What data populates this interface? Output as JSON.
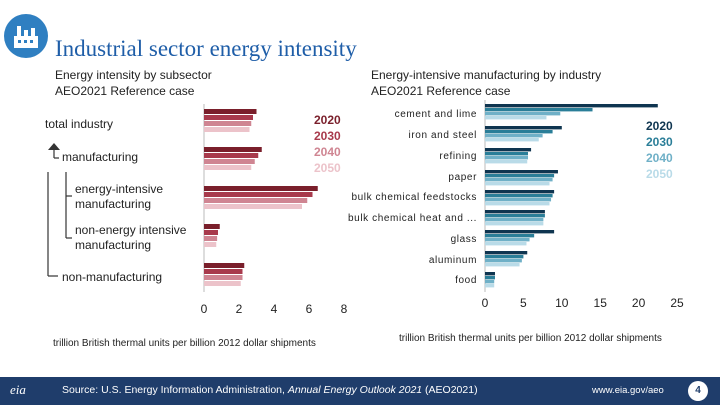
{
  "slide_title": "Industrial sector energy intensity",
  "left_subtitle": [
    "Energy intensity by subsector",
    "AEO2021 Reference case"
  ],
  "right_subtitle": [
    "Energy-intensive manufacturing by industry",
    "AEO2021 Reference case"
  ],
  "footer": {
    "source_prefix": "Source: U.S. Energy Information Administration, ",
    "source_title": "Annual Energy Outlook 2021",
    "source_suffix": " (AEO2021)",
    "url": "www.eia.gov/aeo",
    "page": "4",
    "logo_text": "eia"
  },
  "colors": {
    "title": "#1f5ea8",
    "left_series": [
      "#7a1f2b",
      "#a83a4c",
      "#cf8592",
      "#ecc3ca"
    ],
    "right_series": [
      "#0f3550",
      "#2a7e98",
      "#6fb0c7",
      "#b9dbe8"
    ],
    "footer": "#1f3d6b"
  },
  "chart_data": [
    {
      "type": "bar",
      "orientation": "horizontal",
      "title": "Energy intensity by subsector",
      "xlabel": "trillion British thermal units per billion 2012 dollar shipments",
      "xlim": [
        0,
        8
      ],
      "xticks": [
        "0",
        "2",
        "4",
        "6",
        "8"
      ],
      "categories": [
        "total industry",
        "manufacturing",
        "energy-intensive manufacturing",
        "non-energy intensive manufacturing",
        "non-manufacturing"
      ],
      "category_lines": [
        [
          "total industry"
        ],
        [
          "manufacturing"
        ],
        [
          "energy-intensive",
          "manufacturing"
        ],
        [
          "non-energy intensive",
          "manufacturing"
        ],
        [
          "non-manufacturing"
        ]
      ],
      "series": [
        {
          "name": "2020",
          "values": [
            3.0,
            3.3,
            6.5,
            0.9,
            2.3
          ]
        },
        {
          "name": "2030",
          "values": [
            2.8,
            3.1,
            6.2,
            0.8,
            2.2
          ]
        },
        {
          "name": "2040",
          "values": [
            2.7,
            2.9,
            5.9,
            0.75,
            2.2
          ]
        },
        {
          "name": "2050",
          "values": [
            2.6,
            2.7,
            5.6,
            0.7,
            2.1
          ]
        }
      ],
      "legend": [
        "2020",
        "2030",
        "2040",
        "2050"
      ]
    },
    {
      "type": "bar",
      "orientation": "horizontal",
      "title": "Energy-intensive manufacturing by industry",
      "xlabel": "trillion British thermal units per billion 2012 dollar shipments",
      "xlim": [
        0,
        25
      ],
      "xticks": [
        "0",
        "5",
        "10",
        "15",
        "20",
        "25"
      ],
      "categories": [
        "cement and lime",
        "iron and steel",
        "refining",
        "paper",
        "bulk chemical feedstocks",
        "bulk chemical heat and ...",
        "glass",
        "aluminum",
        "food"
      ],
      "series": [
        {
          "name": "2020",
          "values": [
            22.5,
            10.0,
            6.0,
            9.5,
            9.0,
            7.8,
            9.0,
            5.5,
            1.3
          ]
        },
        {
          "name": "2030",
          "values": [
            14.0,
            8.8,
            5.6,
            9.0,
            8.8,
            7.8,
            6.4,
            5.0,
            1.3
          ]
        },
        {
          "name": "2040",
          "values": [
            9.8,
            7.5,
            5.6,
            8.8,
            8.6,
            7.6,
            5.8,
            4.8,
            1.2
          ]
        },
        {
          "name": "2050",
          "values": [
            8.0,
            7.0,
            5.5,
            8.4,
            8.4,
            7.6,
            5.4,
            4.5,
            1.2
          ]
        }
      ],
      "legend": [
        "2020",
        "2030",
        "2040",
        "2050"
      ]
    }
  ]
}
